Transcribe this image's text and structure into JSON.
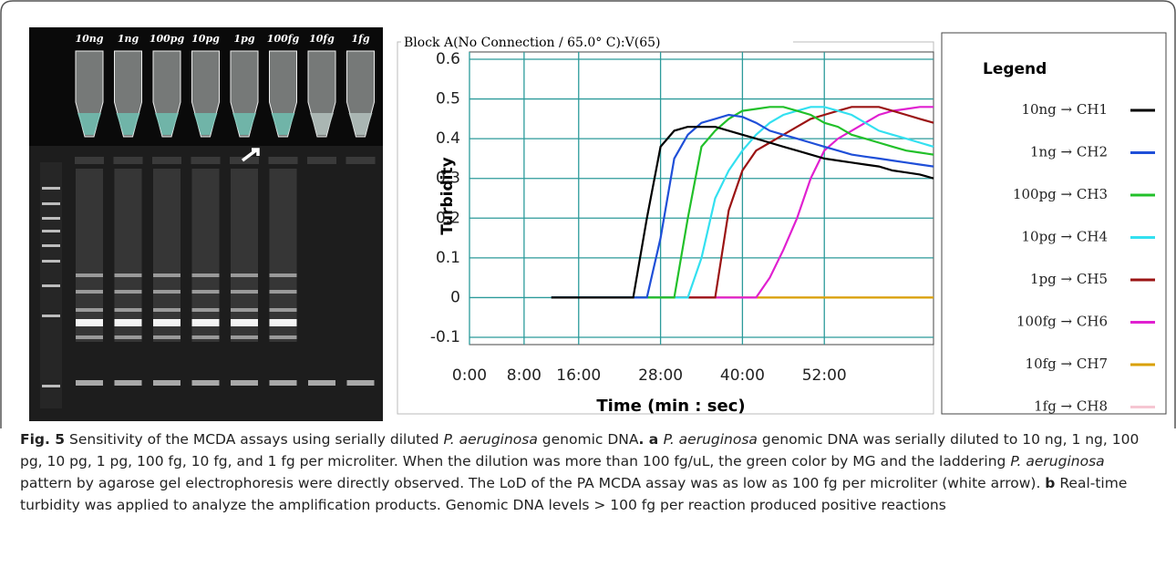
{
  "figure": {
    "gel": {
      "lane_labels": [
        "10ng",
        "1ng",
        "100pg",
        "10pg",
        "1pg",
        "100fg",
        "10fg",
        "1fg"
      ]
    },
    "caption": [
      {
        "bold": "Fig. 5"
      },
      {
        "text": " Sensitivity of the MCDA assays using serially diluted "
      },
      {
        "italic": "P. aeruginosa"
      },
      {
        "text": " genomic DNA"
      },
      {
        "bold": ". a "
      },
      {
        "italic": "P. aeruginosa"
      },
      {
        "text": " genomic DNA was serially diluted to 10 ng, 1 ng, 100 pg, 10 pg, 1 pg, 100 fg, 10 fg, and 1 fg per microliter. When the dilution was more than 100 fg/uL, the green color by MG and the laddering "
      },
      {
        "italic": "P. aeruginosa"
      },
      {
        "text": " pattern by agarose gel electrophoresis were directly observed. The LoD of the PA MCDA assay was as low as 100 fg per microliter (white arrow). "
      },
      {
        "bold": "b"
      },
      {
        "text": " Real-time turbidity was applied to analyze the amplification products. Genomic DNA levels > 100 fg per reaction produced positive reactions"
      }
    ]
  },
  "chart_data": {
    "type": "line",
    "title": "Block A(No Connection / 65.0° C):V(65)",
    "x_label": "Time (min : sec)",
    "y_label": "Turbidity",
    "legend_title": "Legend",
    "x": [
      12,
      14,
      16,
      18,
      20,
      22,
      24,
      26,
      28,
      30,
      32,
      34,
      36,
      38,
      40,
      42,
      44,
      46,
      48,
      50,
      52,
      54,
      56,
      58,
      60,
      62,
      64,
      66,
      68
    ],
    "xlim": [
      0,
      68
    ],
    "xticks": [
      {
        "value": 0,
        "label": "0:00"
      },
      {
        "value": 8,
        "label": "8:00"
      },
      {
        "value": 16,
        "label": "16:00"
      },
      {
        "value": 28,
        "label": "28:00"
      },
      {
        "value": 40,
        "label": "40:00"
      },
      {
        "value": 52,
        "label": "52:00"
      }
    ],
    "ylim": [
      -0.1,
      0.6
    ],
    "yticks": [
      0.6,
      0.5,
      0.4,
      0.3,
      0.2,
      0.1,
      0,
      -0.1
    ],
    "grid": true,
    "series": [
      {
        "name": "10ng → CH1",
        "color": "#000000",
        "values": [
          0,
          0,
          0,
          0,
          0,
          0,
          0,
          0.2,
          0.38,
          0.42,
          0.43,
          0.43,
          0.43,
          0.42,
          0.41,
          0.4,
          0.39,
          0.38,
          0.37,
          0.36,
          0.35,
          0.345,
          0.34,
          0.335,
          0.33,
          0.32,
          0.315,
          0.31,
          0.3
        ]
      },
      {
        "name": "1ng → CH2",
        "color": "#1f4fd8",
        "values": [
          0,
          0,
          0,
          0,
          0,
          0,
          0,
          0,
          0.15,
          0.35,
          0.41,
          0.44,
          0.45,
          0.46,
          0.455,
          0.44,
          0.42,
          0.41,
          0.4,
          0.39,
          0.38,
          0.37,
          0.36,
          0.355,
          0.35,
          0.345,
          0.34,
          0.335,
          0.33
        ]
      },
      {
        "name": "100pg → CH3",
        "color": "#22c02a",
        "values": [
          0,
          0,
          0,
          0,
          0,
          0,
          0,
          0,
          0,
          0,
          0.2,
          0.38,
          0.42,
          0.45,
          0.47,
          0.475,
          0.48,
          0.48,
          0.47,
          0.46,
          0.44,
          0.43,
          0.41,
          0.4,
          0.39,
          0.38,
          0.37,
          0.365,
          0.36
        ]
      },
      {
        "name": "10pg → CH4",
        "color": "#33e0f0",
        "values": [
          0,
          0,
          0,
          0,
          0,
          0,
          0,
          0,
          0,
          0,
          0,
          0.1,
          0.25,
          0.32,
          0.37,
          0.41,
          0.44,
          0.46,
          0.47,
          0.48,
          0.48,
          0.47,
          0.46,
          0.44,
          0.42,
          0.41,
          0.4,
          0.39,
          0.38
        ]
      },
      {
        "name": "1pg → CH5",
        "color": "#9b1414",
        "values": [
          0,
          0,
          0,
          0,
          0,
          0,
          0,
          0,
          0,
          0,
          0,
          0,
          0,
          0.22,
          0.32,
          0.37,
          0.39,
          0.41,
          0.43,
          0.45,
          0.46,
          0.47,
          0.48,
          0.48,
          0.48,
          0.47,
          0.46,
          0.45,
          0.44
        ]
      },
      {
        "name": "100fg → CH6",
        "color": "#e020d0",
        "values": [
          0,
          0,
          0,
          0,
          0,
          0,
          0,
          0,
          0,
          0,
          0,
          0,
          0,
          0,
          0,
          0,
          0.05,
          0.12,
          0.2,
          0.3,
          0.37,
          0.4,
          0.42,
          0.44,
          0.46,
          0.47,
          0.475,
          0.48,
          0.48
        ]
      },
      {
        "name": "10fg → CH7",
        "color": "#d9a000",
        "values": [
          0,
          0,
          0,
          0,
          0,
          0,
          0,
          0,
          0,
          0,
          0,
          0,
          0,
          0,
          0,
          0,
          0,
          0,
          0,
          0,
          0,
          0,
          0,
          0,
          0,
          0,
          0,
          0,
          0
        ]
      },
      {
        "name": "1fg → CH8",
        "color": "#f6c6d2",
        "values": [
          0,
          0,
          0,
          0,
          0,
          0,
          0,
          0,
          0,
          0,
          0,
          0,
          0,
          0,
          0,
          0,
          0,
          0,
          0,
          0,
          0,
          0,
          0,
          0,
          0,
          0,
          0,
          0,
          0
        ]
      }
    ]
  }
}
